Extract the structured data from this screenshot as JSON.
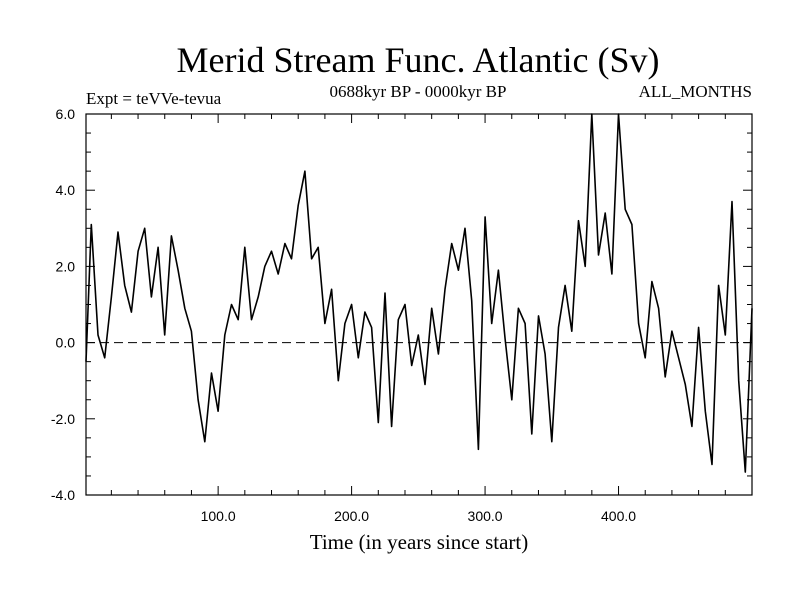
{
  "chart_data": {
    "type": "line",
    "title": "Merid Stream Func. Atlantic (Sv)",
    "subtitle_left": "Expt = teVVe-tevua",
    "subtitle_center": "0688kyr BP - 0000kyr BP",
    "subtitle_right": "ALL_MONTHS",
    "xlabel": "Time (in years since start)",
    "ylabel": "",
    "xlim": [
      1,
      500
    ],
    "ylim": [
      -4.0,
      6.0
    ],
    "x_ticks": [
      100,
      200,
      300,
      400
    ],
    "x_tick_labels": [
      "100.0",
      "200.0",
      "300.0",
      "400.0"
    ],
    "y_ticks": [
      -4,
      -2,
      0,
      2,
      4,
      6
    ],
    "y_tick_labels": [
      "-4.0",
      "-2.0",
      "0.0",
      "2.0",
      "4.0",
      "6.0"
    ],
    "reference_line": {
      "y": 0.0,
      "style": "dashed"
    },
    "grid": false,
    "series": [
      {
        "color": "#000000",
        "x": [
          1,
          5,
          10,
          15,
          20,
          25,
          30,
          35,
          40,
          45,
          50,
          55,
          60,
          65,
          70,
          75,
          80,
          85,
          90,
          95,
          100,
          105,
          110,
          115,
          120,
          125,
          130,
          135,
          140,
          145,
          150,
          155,
          160,
          165,
          170,
          175,
          180,
          185,
          190,
          195,
          200,
          205,
          210,
          215,
          220,
          225,
          230,
          235,
          240,
          245,
          250,
          255,
          260,
          265,
          270,
          275,
          280,
          285,
          290,
          295,
          300,
          305,
          310,
          315,
          320,
          325,
          330,
          335,
          340,
          345,
          350,
          355,
          360,
          365,
          370,
          375,
          380,
          385,
          390,
          395,
          400,
          405,
          410,
          415,
          420,
          425,
          430,
          435,
          440,
          445,
          450,
          455,
          460,
          465,
          470,
          475,
          480,
          485,
          490,
          495,
          500
        ],
        "values": [
          -0.5,
          3.1,
          0.2,
          -0.4,
          1.2,
          2.9,
          1.5,
          0.8,
          2.4,
          3.0,
          1.2,
          2.5,
          0.2,
          2.8,
          1.9,
          0.9,
          0.3,
          -1.5,
          -2.6,
          -0.8,
          -1.8,
          0.2,
          1.0,
          0.6,
          2.5,
          0.6,
          1.2,
          2.0,
          2.4,
          1.8,
          2.6,
          2.2,
          3.6,
          4.5,
          2.2,
          2.5,
          0.5,
          1.4,
          -1.0,
          0.5,
          1.0,
          -0.4,
          0.8,
          0.4,
          -2.1,
          1.3,
          -2.2,
          0.6,
          1.0,
          -0.6,
          0.2,
          -1.1,
          0.9,
          -0.3,
          1.4,
          2.6,
          1.9,
          3.0,
          1.1,
          -2.8,
          3.3,
          0.5,
          1.9,
          0.1,
          -1.5,
          0.9,
          0.5,
          -2.4,
          0.7,
          -0.3,
          -2.6,
          0.4,
          1.5,
          0.3,
          3.2,
          2.0,
          6.0,
          2.3,
          3.4,
          1.8,
          6.0,
          3.5,
          3.1,
          0.5,
          -0.4,
          1.6,
          0.9,
          -0.9,
          0.3,
          -0.4,
          -1.1,
          -2.2,
          0.4,
          -1.8,
          -3.2,
          1.5,
          0.2,
          3.7,
          -1.0,
          -3.4,
          0.9
        ]
      }
    ]
  }
}
